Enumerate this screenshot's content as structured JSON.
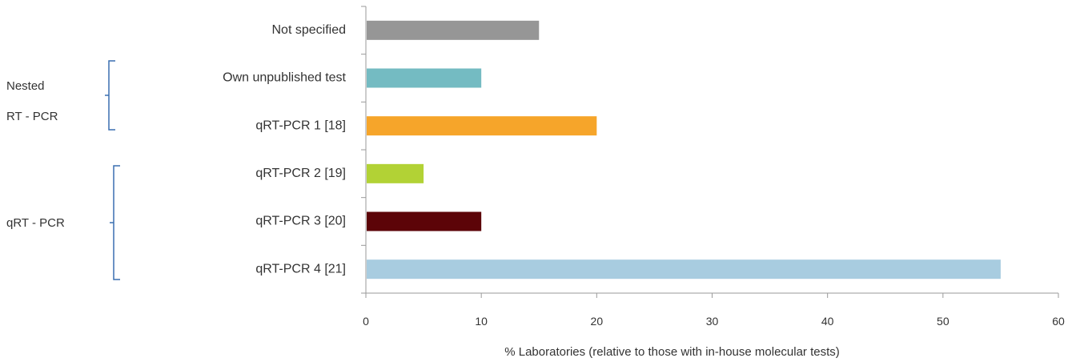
{
  "chart_data": {
    "type": "bar",
    "orientation": "horizontal",
    "title": "",
    "xlabel": "% Laboratories (relative to those with in-house molecular tests)",
    "ylabel": "",
    "xlim": [
      0,
      60
    ],
    "xticks": [
      "0",
      "10",
      "20",
      "30",
      "40",
      "50",
      "60"
    ],
    "grid": false,
    "categories": [
      "Not specified",
      "Own unpublished test",
      "qRT-PCR 1 [18]",
      "qRT-PCR 2 [19]",
      "qRT-PCR 3 [20]",
      "qRT-PCR 4 [21]"
    ],
    "values": [
      15,
      10,
      20,
      5,
      10,
      55
    ],
    "colors": [
      "#969696",
      "#74BBC2",
      "#F6A52A",
      "#B2D235",
      "#5C0408",
      "#A8CCE0"
    ],
    "groups": [
      {
        "label_lines": [
          "Nested",
          "RT - PCR"
        ],
        "bracket_color": "#3A6FB0"
      },
      {
        "label_lines": [
          "qRT - PCR"
        ],
        "bracket_color": "#3A6FB0"
      }
    ]
  }
}
